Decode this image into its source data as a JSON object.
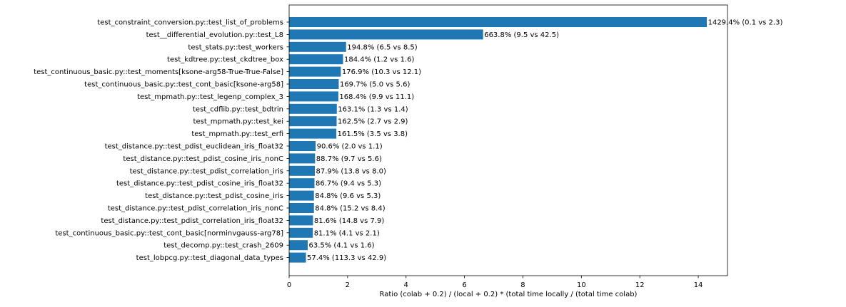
{
  "chart_data": {
    "type": "bar",
    "orientation": "horizontal",
    "title": "",
    "xlabel": "Ratio (colab + 0.2) / (local + 0.2) * (total time locally / (total time colab)",
    "ylabel": "",
    "xlim": [
      0,
      15
    ],
    "xticks": [
      0,
      2,
      4,
      6,
      8,
      10,
      12,
      14
    ],
    "grid": false,
    "legend": "none",
    "bar_color": "#1f77b4",
    "categories": [
      "test_constraint_conversion.py::test_list_of_problems",
      "test__differential_evolution.py::test_L8",
      "test_stats.py::test_workers",
      "test_kdtree.py::test_ckdtree_box",
      "test_continuous_basic.py::test_moments[ksone-arg58-True-True-False]",
      "test_continuous_basic.py::test_cont_basic[ksone-arg58]",
      "test_mpmath.py::test_legenp_complex_3",
      "test_cdflib.py::test_bdtrin",
      "test_mpmath.py::test_kei",
      "test_mpmath.py::test_erfi",
      "test_distance.py::test_pdist_euclidean_iris_float32",
      "test_distance.py::test_pdist_cosine_iris_nonC",
      "test_distance.py::test_pdist_correlation_iris",
      "test_distance.py::test_pdist_cosine_iris_float32",
      "test_distance.py::test_pdist_cosine_iris",
      "test_distance.py::test_pdist_correlation_iris_nonC",
      "test_distance.py::test_pdist_correlation_iris_float32",
      "test_continuous_basic.py::test_cont_basic[norminvgauss-arg78]",
      "test_decomp.py::test_crash_2609",
      "test_lobpcg.py::test_diagonal_data_types"
    ],
    "values": [
      14.294,
      6.638,
      1.948,
      1.844,
      1.769,
      1.697,
      1.684,
      1.631,
      1.625,
      1.615,
      0.906,
      0.887,
      0.879,
      0.867,
      0.848,
      0.848,
      0.816,
      0.811,
      0.635,
      0.574
    ],
    "labels": [
      "1429.4% (0.1 vs 2.3)",
      "663.8% (9.5 vs 42.5)",
      "194.8% (6.5 vs 8.5)",
      "184.4% (1.2 vs 1.6)",
      "176.9% (10.3 vs 12.1)",
      "169.7% (5.0 vs 5.6)",
      "168.4% (9.9 vs 11.1)",
      "163.1% (1.3 vs 1.4)",
      "162.5% (2.7 vs 2.9)",
      "161.5% (3.5 vs 3.8)",
      "90.6% (2.0 vs 1.1)",
      "88.7% (9.7 vs 5.6)",
      "87.9% (13.8 vs 8.0)",
      "86.7% (9.4 vs 5.3)",
      "84.8% (9.6 vs 5.3)",
      "84.8% (15.2 vs 8.4)",
      "81.6% (14.8 vs 7.9)",
      "81.1% (4.1 vs 2.1)",
      "63.5% (4.1 vs 1.6)",
      "57.4% (113.3 vs 42.9)"
    ]
  }
}
